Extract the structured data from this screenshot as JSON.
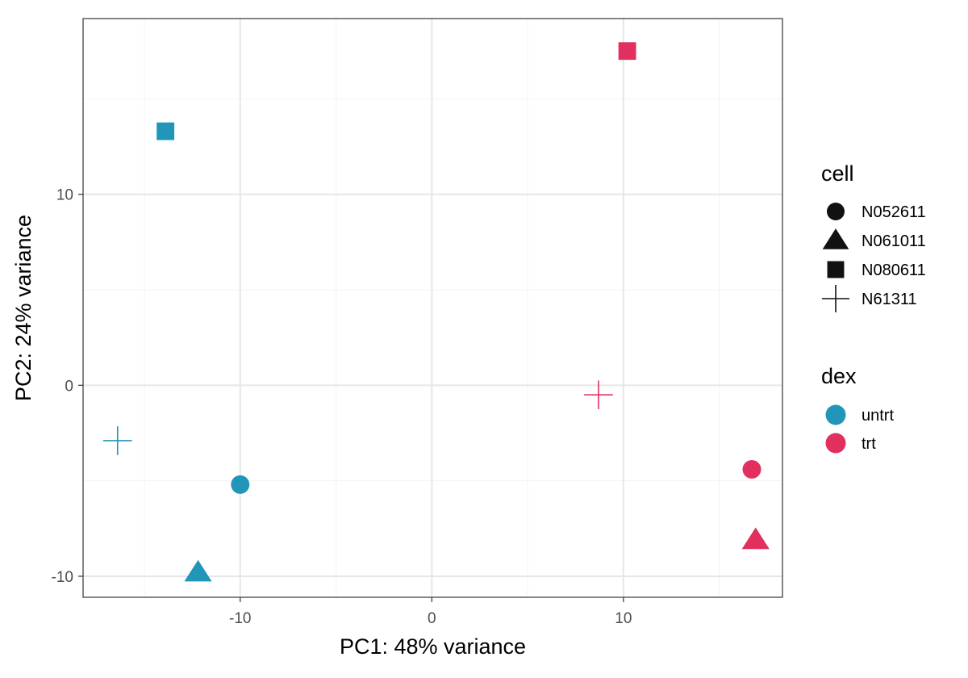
{
  "chart_data": {
    "type": "scatter",
    "title": "",
    "xlabel": "PC1: 48% variance",
    "ylabel": "PC2: 24% variance",
    "xlim": [
      -18.2,
      18.3
    ],
    "ylim": [
      -11.1,
      19.2
    ],
    "xticks": [
      -10,
      0,
      10
    ],
    "yticks": [
      -10,
      0,
      10
    ],
    "grid": true,
    "legend_position": "right",
    "points": [
      {
        "x": -10.0,
        "y": -5.2,
        "cell": "N052611",
        "dex": "untrt"
      },
      {
        "x": -12.2,
        "y": -9.8,
        "cell": "N061011",
        "dex": "untrt"
      },
      {
        "x": -13.9,
        "y": 13.3,
        "cell": "N080611",
        "dex": "untrt"
      },
      {
        "x": -16.4,
        "y": -2.9,
        "cell": "N61311",
        "dex": "untrt"
      },
      {
        "x": 16.7,
        "y": -4.4,
        "cell": "N052611",
        "dex": "trt"
      },
      {
        "x": 16.9,
        "y": -8.1,
        "cell": "N061011",
        "dex": "trt"
      },
      {
        "x": 10.2,
        "y": 17.5,
        "cell": "N080611",
        "dex": "trt"
      },
      {
        "x": 8.7,
        "y": -0.5,
        "cell": "N61311",
        "dex": "trt"
      }
    ],
    "legend": {
      "shape": {
        "title": "cell",
        "entries": [
          {
            "label": "N052611",
            "shape": "circle"
          },
          {
            "label": "N061011",
            "shape": "triangle"
          },
          {
            "label": "N080611",
            "shape": "square"
          },
          {
            "label": "N61311",
            "shape": "plus"
          }
        ]
      },
      "color": {
        "title": "dex",
        "entries": [
          {
            "label": "untrt",
            "color": "#2196B8"
          },
          {
            "label": "trt",
            "color": "#E2305E"
          }
        ]
      }
    },
    "colors": {
      "untrt": "#2196B8",
      "trt": "#E2305E",
      "legend_shape": "#111111"
    }
  }
}
